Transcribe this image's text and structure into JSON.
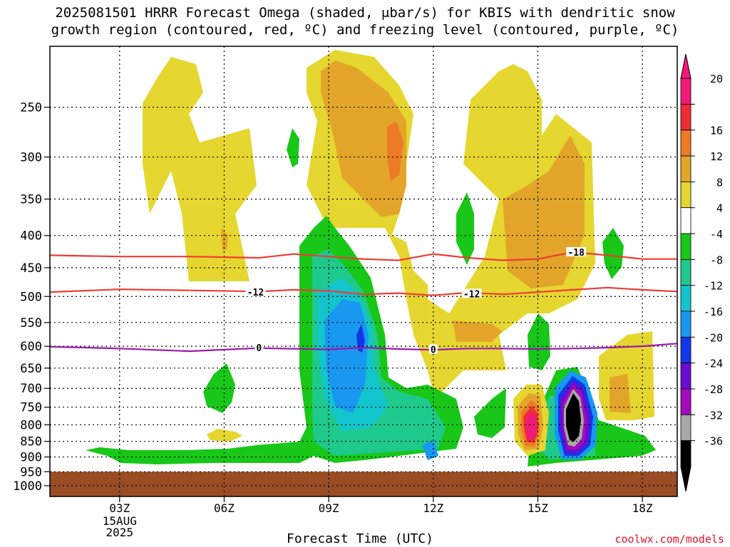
{
  "title_line1": "2025081501 HRRR Forecast Omega (shaded, μbar/s) for KBIS with dendritic snow",
  "title_line2": "growth region (contoured, red, ºC) and freezing level (contoured, purple, ºC)",
  "xlabel": "Forecast Time (UTC)",
  "credit": "coolwx.com/models",
  "chart_data": {
    "type": "heatmap",
    "title": "2025081501 HRRR Forecast Omega (shaded, μbar/s) for KBIS with dendritic snow growth region (contoured, red, ºC) and freezing level (contoured, purple, ºC)",
    "xlabel": "Forecast Time (UTC)",
    "ylabel": "",
    "x_ticks": [
      "03Z",
      "06Z",
      "09Z",
      "12Z",
      "15Z",
      "18Z"
    ],
    "x_tick_hours": [
      3,
      6,
      9,
      12,
      15,
      18
    ],
    "x_date_label": [
      "15AUG",
      "2025"
    ],
    "xlim_hours": [
      1,
      19
    ],
    "y_ticks": [
      250,
      300,
      350,
      400,
      450,
      500,
      550,
      600,
      650,
      700,
      750,
      800,
      850,
      900,
      950,
      1000
    ],
    "ylim_hPa": [
      200,
      1040
    ],
    "y_scale": "log-pressure, inverted",
    "colorbar": {
      "labels": [
        20,
        16,
        12,
        8,
        4,
        -4,
        -8,
        -12,
        -16,
        -20,
        -24,
        -28,
        -32,
        -36
      ],
      "colors": [
        "#f01a78",
        "#ef2b36",
        "#ed7a24",
        "#e3a529",
        "#e6d630",
        "#ffffff",
        "#18c718",
        "#1ec98c",
        "#12c4cc",
        "#1898f0",
        "#1336e6",
        "#6a0cd2",
        "#a20cbc",
        "#a8a8a8",
        "#000000"
      ]
    },
    "terrain": {
      "top_hPa": 950,
      "color": "#9a4d25"
    },
    "contours": [
      {
        "name": "dendritic snow growth -18",
        "value": -18,
        "color": "#ef3b35",
        "hours": [
          1,
          3,
          5,
          7,
          8,
          9,
          10,
          11,
          12,
          13,
          14,
          15,
          16,
          17,
          18,
          19
        ],
        "pressure": [
          430,
          432,
          432,
          434,
          428,
          432,
          436,
          438,
          428,
          434,
          438,
          436,
          425,
          430,
          436,
          436
        ]
      },
      {
        "name": "dendritic snow growth -12",
        "value": -12,
        "color": "#ef3b35",
        "hours": [
          1,
          3,
          5,
          7,
          8,
          9,
          10,
          11,
          12,
          13,
          14,
          15,
          16,
          17,
          18,
          19
        ],
        "pressure": [
          492,
          487,
          489,
          491,
          488,
          490,
          496,
          494,
          498,
          493,
          496,
          492,
          488,
          484,
          488,
          491
        ]
      },
      {
        "name": "freezing level 0",
        "value": 0,
        "color": "#9c16b0",
        "hours": [
          1,
          3,
          5,
          7,
          9,
          10,
          11,
          12,
          13,
          14,
          15,
          16,
          17,
          18,
          19
        ],
        "pressure": [
          601,
          605,
          611,
          604,
          607,
          603,
          606,
          608,
          605,
          605,
          606,
          605,
          603,
          600,
          594
        ]
      }
    ],
    "contour_labels": [
      {
        "text": "-18",
        "hour": 16.1,
        "pressure": 425
      },
      {
        "text": "-12",
        "hour": 6.9,
        "pressure": 492
      },
      {
        "text": "-12",
        "hour": 13.1,
        "pressure": 495
      },
      {
        "text": "0",
        "hour": 7.0,
        "pressure": 603
      },
      {
        "text": "0",
        "hour": 12.0,
        "pressure": 607
      }
    ],
    "omega_features": [
      {
        "desc": "upward motion core",
        "hour_range": [
          8.5,
          11
        ],
        "pressure_range": [
          420,
          920
        ],
        "min_value": -20
      },
      {
        "desc": "strong upward motion",
        "hour_range": [
          15.5,
          16.6
        ],
        "pressure_range": [
          700,
          900
        ],
        "min_value": -36
      },
      {
        "desc": "strong downward motion",
        "hour_range": [
          14.5,
          15.3
        ],
        "pressure_range": [
          730,
          900
        ],
        "max_value": 20
      },
      {
        "desc": "downward motion aloft",
        "hour_range": [
          8.5,
          12
        ],
        "pressure_range": [
          200,
          550
        ],
        "max_value": 12
      }
    ]
  },
  "icons": {
    "colorbar_top_arrow": "triangle-up",
    "colorbar_bottom_arrow": "triangle-down"
  }
}
